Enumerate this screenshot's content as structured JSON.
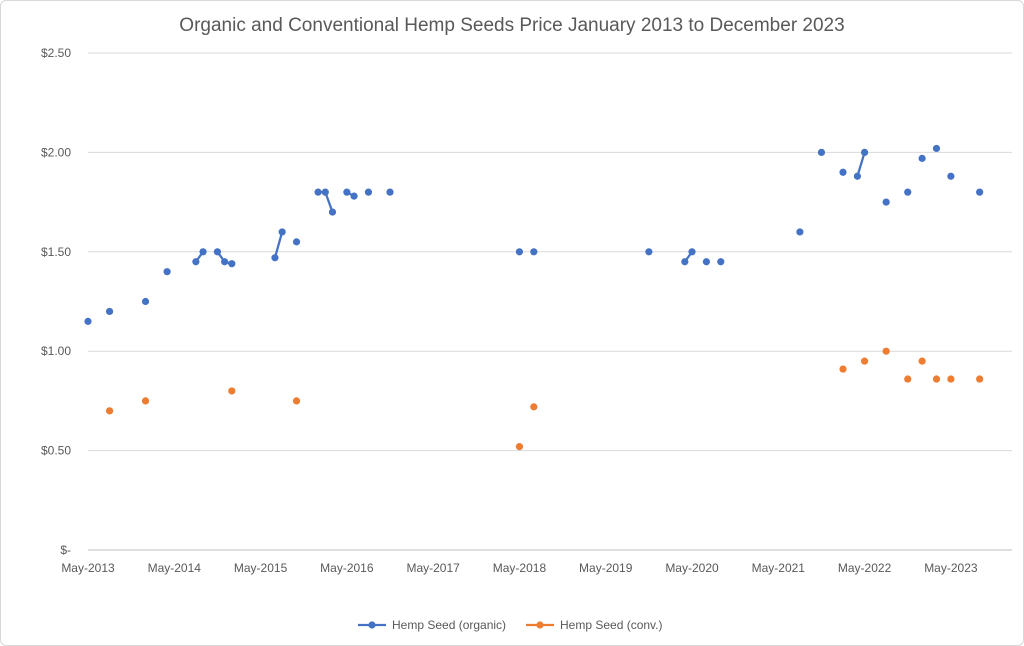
{
  "chart_data": {
    "type": "line",
    "title": "Organic and Conventional Hemp Seeds Price January 2013 to December 2023",
    "xlabel": "",
    "ylabel": "",
    "ylim": [
      0,
      2.5
    ],
    "y_ticks": [
      {
        "value": 0,
        "label": "$-"
      },
      {
        "value": 0.5,
        "label": "$0.50"
      },
      {
        "value": 1.0,
        "label": "$1.00"
      },
      {
        "value": 1.5,
        "label": "$1.50"
      },
      {
        "value": 2.0,
        "label": "$2.00"
      },
      {
        "value": 2.5,
        "label": "$2.50"
      }
    ],
    "x_range": [
      "2013-05",
      "2023-12"
    ],
    "x_ticks": [
      "May-2013",
      "May-2014",
      "May-2015",
      "May-2016",
      "May-2017",
      "May-2018",
      "May-2019",
      "May-2020",
      "May-2021",
      "May-2022",
      "May-2023"
    ],
    "grid": true,
    "legend_position": "bottom",
    "series": [
      {
        "name": "Hemp Seed (organic)",
        "color": "#4472c4",
        "points": [
          {
            "x": "2013-05",
            "y": 1.15
          },
          {
            "x": null,
            "y": null
          },
          {
            "x": "2013-08",
            "y": 1.2
          },
          {
            "x": null,
            "y": null
          },
          {
            "x": "2014-01",
            "y": 1.25
          },
          {
            "x": null,
            "y": null
          },
          {
            "x": "2014-04",
            "y": 1.4
          },
          {
            "x": null,
            "y": null
          },
          {
            "x": "2014-08",
            "y": 1.45
          },
          {
            "x": "2014-09",
            "y": 1.5
          },
          {
            "x": null,
            "y": null
          },
          {
            "x": "2014-11",
            "y": 1.5
          },
          {
            "x": "2014-12",
            "y": 1.45
          },
          {
            "x": "2015-01",
            "y": 1.44
          },
          {
            "x": null,
            "y": null
          },
          {
            "x": "2015-07",
            "y": 1.47
          },
          {
            "x": "2015-08",
            "y": 1.6
          },
          {
            "x": null,
            "y": null
          },
          {
            "x": "2015-10",
            "y": 1.55
          },
          {
            "x": null,
            "y": null
          },
          {
            "x": "2016-01",
            "y": 1.8
          },
          {
            "x": "2016-02",
            "y": 1.8
          },
          {
            "x": "2016-03",
            "y": 1.7
          },
          {
            "x": null,
            "y": null
          },
          {
            "x": "2016-05",
            "y": 1.8
          },
          {
            "x": "2016-06",
            "y": 1.78
          },
          {
            "x": null,
            "y": null
          },
          {
            "x": "2016-08",
            "y": 1.8
          },
          {
            "x": null,
            "y": null
          },
          {
            "x": "2016-11",
            "y": 1.8
          },
          {
            "x": null,
            "y": null
          },
          {
            "x": "2018-05",
            "y": 1.5
          },
          {
            "x": null,
            "y": null
          },
          {
            "x": "2018-07",
            "y": 1.5
          },
          {
            "x": null,
            "y": null
          },
          {
            "x": "2019-11",
            "y": 1.5
          },
          {
            "x": null,
            "y": null
          },
          {
            "x": "2020-04",
            "y": 1.45
          },
          {
            "x": "2020-05",
            "y": 1.5
          },
          {
            "x": null,
            "y": null
          },
          {
            "x": "2020-07",
            "y": 1.45
          },
          {
            "x": null,
            "y": null
          },
          {
            "x": "2020-09",
            "y": 1.45
          },
          {
            "x": null,
            "y": null
          },
          {
            "x": "2021-08",
            "y": 1.6
          },
          {
            "x": null,
            "y": null
          },
          {
            "x": "2021-11",
            "y": 2.0
          },
          {
            "x": null,
            "y": null
          },
          {
            "x": "2022-02",
            "y": 1.9
          },
          {
            "x": null,
            "y": null
          },
          {
            "x": "2022-04",
            "y": 1.88
          },
          {
            "x": "2022-05",
            "y": 2.0
          },
          {
            "x": null,
            "y": null
          },
          {
            "x": "2022-08",
            "y": 1.75
          },
          {
            "x": null,
            "y": null
          },
          {
            "x": "2022-11",
            "y": 1.8
          },
          {
            "x": null,
            "y": null
          },
          {
            "x": "2023-01",
            "y": 1.97
          },
          {
            "x": null,
            "y": null
          },
          {
            "x": "2023-03",
            "y": 2.02
          },
          {
            "x": null,
            "y": null
          },
          {
            "x": "2023-05",
            "y": 1.88
          },
          {
            "x": null,
            "y": null
          },
          {
            "x": "2023-09",
            "y": 1.8
          }
        ]
      },
      {
        "name": "Hemp Seed (conv.)",
        "color": "#ed7d31",
        "points": [
          {
            "x": "2013-08",
            "y": 0.7
          },
          {
            "x": null,
            "y": null
          },
          {
            "x": "2014-01",
            "y": 0.75
          },
          {
            "x": null,
            "y": null
          },
          {
            "x": "2015-01",
            "y": 0.8
          },
          {
            "x": null,
            "y": null
          },
          {
            "x": "2015-10",
            "y": 0.75
          },
          {
            "x": null,
            "y": null
          },
          {
            "x": "2018-05",
            "y": 0.52
          },
          {
            "x": null,
            "y": null
          },
          {
            "x": "2018-07",
            "y": 0.72
          },
          {
            "x": null,
            "y": null
          },
          {
            "x": "2022-02",
            "y": 0.91
          },
          {
            "x": null,
            "y": null
          },
          {
            "x": "2022-05",
            "y": 0.95
          },
          {
            "x": null,
            "y": null
          },
          {
            "x": "2022-08",
            "y": 1.0
          },
          {
            "x": null,
            "y": null
          },
          {
            "x": "2022-11",
            "y": 0.86
          },
          {
            "x": null,
            "y": null
          },
          {
            "x": "2023-01",
            "y": 0.95
          },
          {
            "x": null,
            "y": null
          },
          {
            "x": "2023-03",
            "y": 0.86
          },
          {
            "x": null,
            "y": null
          },
          {
            "x": "2023-05",
            "y": 0.86
          },
          {
            "x": null,
            "y": null
          },
          {
            "x": "2023-09",
            "y": 0.86
          }
        ]
      }
    ]
  }
}
